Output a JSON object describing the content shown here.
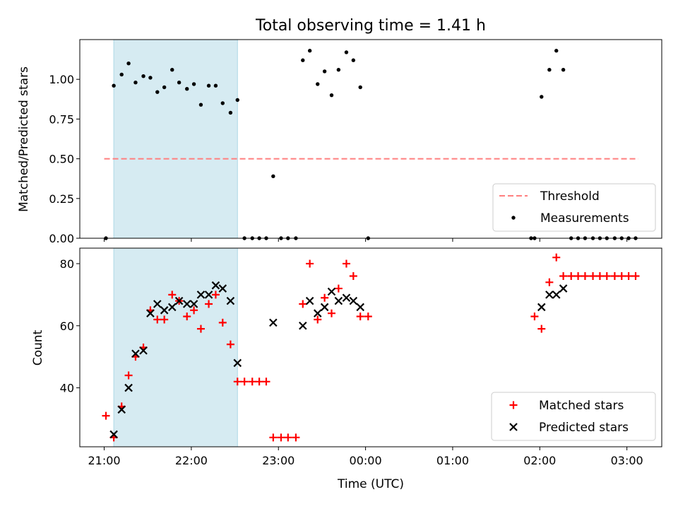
{
  "title": "Total observing time = 1.41 h",
  "xlabel": "Time (UTC)",
  "x_ticks": [
    "21:00",
    "22:00",
    "23:00",
    "00:00",
    "01:00",
    "02:00",
    "03:00"
  ],
  "colors": {
    "span": "#add8e6",
    "threshold": "#ff7f7f",
    "measurement": "#000000",
    "matched": "#ff0000",
    "predicted": "#000000"
  },
  "chart_data": [
    {
      "type": "scatter",
      "panel": "top",
      "ylabel": "Matched/Predicted stars",
      "xlim": [
        -0.28,
        6.4
      ],
      "ylim": [
        0.0,
        1.25
      ],
      "y_ticks": [
        "0.00",
        "0.25",
        "0.50",
        "0.75",
        "1.00"
      ],
      "y_tick_values": [
        0.0,
        0.25,
        0.5,
        0.75,
        1.0
      ],
      "grid": false,
      "legend_position": "lower right",
      "shaded_x_range": [
        0.11,
        1.53
      ],
      "threshold": {
        "name": "Threshold",
        "value": 0.5,
        "x_range": [
          0.0,
          6.13
        ]
      },
      "measurements": {
        "name": "Measurements",
        "x": [
          0.02,
          0.11,
          0.2,
          0.28,
          0.36,
          0.45,
          0.53,
          0.61,
          0.69,
          0.78,
          0.86,
          0.95,
          1.03,
          1.11,
          1.2,
          1.28,
          1.36,
          1.45,
          1.53,
          1.61,
          1.7,
          1.78,
          1.86,
          1.94,
          2.03,
          2.11,
          2.2,
          2.28,
          2.36,
          2.45,
          2.53,
          2.61,
          2.69,
          2.78,
          2.86,
          2.94,
          3.03,
          4.9,
          4.94,
          5.02,
          5.11,
          5.19,
          5.27,
          5.36,
          5.44,
          5.52,
          5.61,
          5.69,
          5.77,
          5.86,
          5.94,
          6.02,
          6.1
        ],
        "y": [
          0.0,
          0.96,
          1.03,
          1.1,
          0.98,
          1.02,
          1.01,
          0.92,
          0.95,
          1.06,
          0.98,
          0.94,
          0.97,
          0.84,
          0.96,
          0.96,
          0.85,
          0.79,
          0.87,
          0.0,
          0.0,
          0.0,
          0.0,
          0.39,
          0.0,
          0.0,
          0.0,
          1.12,
          1.18,
          0.97,
          1.05,
          0.9,
          1.06,
          1.17,
          1.12,
          0.95,
          0.0,
          0.0,
          0.0,
          0.89,
          1.06,
          1.18,
          1.06,
          0.0,
          0.0,
          0.0,
          0.0,
          0.0,
          0.0,
          0.0,
          0.0,
          0.0,
          0.0
        ]
      }
    },
    {
      "type": "scatter",
      "panel": "bottom",
      "ylabel": "Count",
      "xlim": [
        -0.28,
        6.4
      ],
      "ylim": [
        21,
        85
      ],
      "y_ticks": [
        "40",
        "60",
        "80"
      ],
      "y_tick_values": [
        40,
        60,
        80
      ],
      "grid": false,
      "legend_position": "lower right",
      "shaded_x_range": [
        0.11,
        1.53
      ],
      "series": [
        {
          "name": "Matched stars",
          "marker": "plus",
          "x": [
            0.02,
            0.11,
            0.2,
            0.28,
            0.36,
            0.45,
            0.53,
            0.61,
            0.69,
            0.78,
            0.86,
            0.95,
            1.03,
            1.11,
            1.2,
            1.28,
            1.36,
            1.45,
            1.53,
            1.61,
            1.7,
            1.78,
            1.86,
            1.94,
            2.03,
            2.11,
            2.2,
            2.28,
            2.36,
            2.45,
            2.53,
            2.61,
            2.69,
            2.78,
            2.86,
            2.94,
            3.03,
            4.94,
            5.02,
            5.11,
            5.19,
            5.27,
            5.36,
            5.44,
            5.52,
            5.61,
            5.69,
            5.77,
            5.86,
            5.94,
            6.02,
            6.1
          ],
          "y": [
            31,
            24,
            34,
            44,
            50,
            53,
            65,
            62,
            62,
            70,
            68,
            63,
            65,
            59,
            67,
            70,
            61,
            54,
            42,
            42,
            42,
            42,
            42,
            24,
            24,
            24,
            24,
            67,
            80,
            62,
            69,
            64,
            72,
            80,
            76,
            63,
            63,
            63,
            59,
            74,
            82,
            76,
            76,
            76,
            76,
            76,
            76,
            76,
            76,
            76,
            76,
            76
          ]
        },
        {
          "name": "Predicted stars",
          "marker": "x",
          "x": [
            0.11,
            0.2,
            0.28,
            0.36,
            0.45,
            0.53,
            0.61,
            0.69,
            0.78,
            0.86,
            0.95,
            1.03,
            1.11,
            1.2,
            1.28,
            1.36,
            1.45,
            1.53,
            1.94,
            2.28,
            2.36,
            2.45,
            2.53,
            2.61,
            2.69,
            2.78,
            2.86,
            2.94,
            5.02,
            5.11,
            5.19,
            5.27
          ],
          "y": [
            25,
            33,
            40,
            51,
            52,
            64,
            67,
            65,
            66,
            68,
            67,
            67,
            70,
            70,
            73,
            72,
            68,
            48,
            61,
            60,
            68,
            64,
            66,
            71,
            68,
            69,
            68,
            66,
            66,
            70,
            70,
            72
          ]
        }
      ]
    }
  ]
}
